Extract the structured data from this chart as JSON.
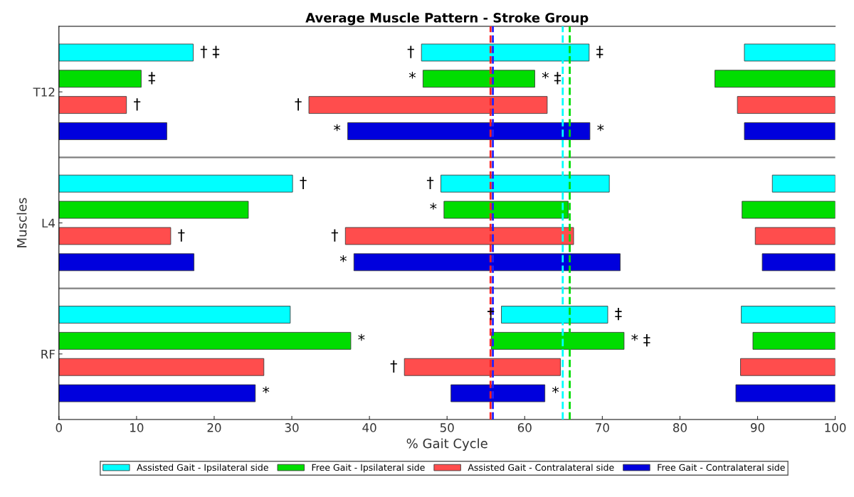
{
  "chart_data": {
    "type": "bar",
    "orientation": "horizontal",
    "title": "Average Muscle Pattern - Stroke Group",
    "xlabel": "% Gait Cycle",
    "ylabel": "Muscles",
    "categories": [
      "T12",
      "L4",
      "RF"
    ],
    "xlim": [
      0,
      100
    ],
    "xticks": [
      0,
      10,
      20,
      30,
      40,
      50,
      60,
      70,
      80,
      90,
      100
    ],
    "grid": false,
    "legend": "bottom",
    "series": [
      {
        "name": "Assisted Gait - Ipsilateral side",
        "color": "#00ffff",
        "base": [
          0,
          0,
          0
        ],
        "values": [
          17.3,
          30.1,
          29.8
        ],
        "value_labels": [
          "† ‡",
          "†",
          null
        ]
      },
      {
        "color": "#00ffff",
        "base": [
          46.7,
          49.2,
          57.0
        ],
        "values": [
          21.6,
          21.7,
          13.7
        ],
        "value_labels": [
          "‡",
          null,
          "‡"
        ]
      },
      {
        "color": "#00ffff",
        "base": [
          88.3,
          91.9,
          87.9
        ],
        "values": [
          11.7,
          8.1,
          12.1
        ]
      },
      {
        "name": "Free Gait - Ipsilateral side",
        "color": "#00dd00",
        "base": [
          0,
          0,
          0
        ],
        "values": [
          10.6,
          24.4,
          37.6
        ],
        "value_labels": [
          "‡",
          null,
          "*"
        ]
      },
      {
        "color": "#00dd00",
        "base": [
          46.9,
          49.6,
          55.7
        ],
        "values": [
          14.4,
          16.0,
          17.1
        ],
        "value_labels": [
          "* ‡",
          null,
          "* ‡"
        ]
      },
      {
        "color": "#00dd00",
        "base": [
          84.5,
          88.0,
          89.4
        ],
        "values": [
          15.5,
          12.0,
          10.6
        ]
      },
      {
        "name": "Assisted Gait - Contralateral side",
        "color": "#ff4d4d",
        "base": [
          0,
          0,
          0
        ],
        "values": [
          8.7,
          14.4,
          26.4
        ],
        "value_labels": [
          "†",
          "†",
          null
        ]
      },
      {
        "color": "#ff4d4d",
        "base": [
          32.2,
          36.9,
          44.5
        ],
        "values": [
          30.7,
          29.4,
          20.1
        ]
      },
      {
        "color": "#ff4d4d",
        "base": [
          87.4,
          89.7,
          87.8
        ],
        "values": [
          12.6,
          10.3,
          12.2
        ]
      },
      {
        "name": "Free Gait - Contralateral side",
        "color": "#0000dd",
        "base": [
          0,
          0,
          0
        ],
        "values": [
          13.9,
          17.4,
          25.3
        ],
        "value_labels": [
          null,
          null,
          "*"
        ]
      },
      {
        "color": "#0000dd",
        "base": [
          37.2,
          38.0,
          50.5
        ],
        "values": [
          31.2,
          34.3,
          12.1
        ],
        "value_labels": [
          "*",
          null,
          "*"
        ]
      },
      {
        "color": "#0000dd",
        "base": [
          88.3,
          90.6,
          87.2
        ],
        "values": [
          11.7,
          9.4,
          12.8
        ]
      }
    ],
    "ref_lines": [
      {
        "axis": "x",
        "value": 55.6,
        "color": "#ff2020",
        "line_style": "dashed"
      },
      {
        "axis": "x",
        "value": 55.9,
        "color": "#2020ff",
        "line_style": "dashed"
      },
      {
        "axis": "x",
        "value": 64.9,
        "color": "#00ffff",
        "line_style": "dashed"
      },
      {
        "axis": "x",
        "value": 65.8,
        "color": "#00dd00",
        "line_style": "dashed"
      }
    ],
    "annotations": [
      "†",
      "*",
      "†",
      "*",
      "†",
      "*",
      "†",
      "*",
      "†",
      "†"
    ]
  }
}
